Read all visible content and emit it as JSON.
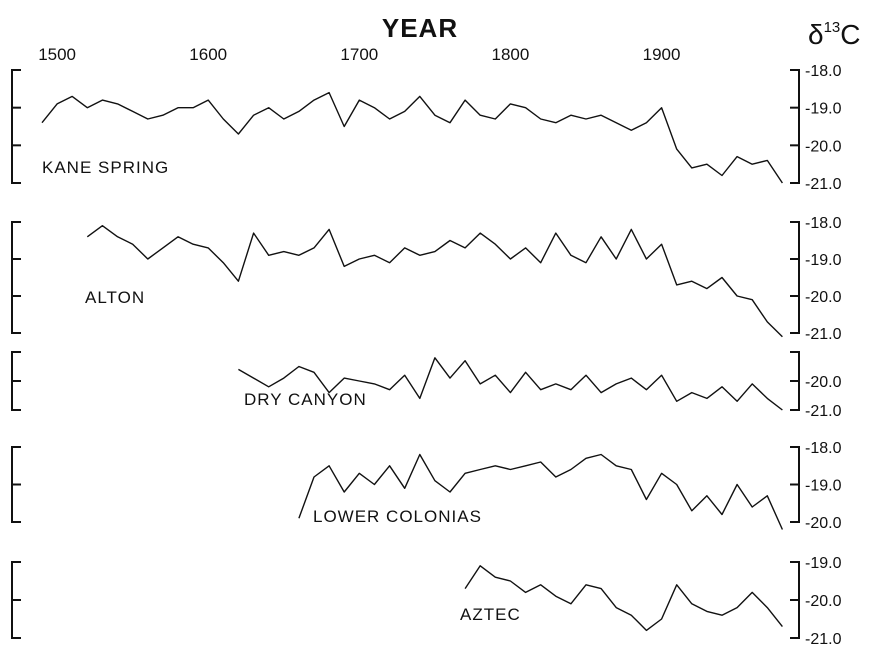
{
  "chart_data": {
    "type": "line",
    "title": "YEAR",
    "ylabel_symbol": "δ",
    "ylabel_superscript": "13",
    "ylabel_element": "C",
    "x_ticks": [
      "1500",
      "1600",
      "1700",
      "1800",
      "1900"
    ],
    "xlim": [
      1490,
      1985
    ],
    "panels": [
      {
        "name": "KANE SPRING",
        "ylim": [
          -18.0,
          -21.0
        ],
        "yticks": [
          "-18.0",
          "-19.0",
          "-20.0",
          "-21.0"
        ],
        "x": [
          1490,
          1500,
          1510,
          1520,
          1530,
          1540,
          1550,
          1560,
          1570,
          1580,
          1590,
          1600,
          1610,
          1620,
          1630,
          1640,
          1650,
          1660,
          1670,
          1680,
          1690,
          1700,
          1710,
          1720,
          1730,
          1740,
          1750,
          1760,
          1770,
          1780,
          1790,
          1800,
          1810,
          1820,
          1830,
          1840,
          1850,
          1860,
          1870,
          1880,
          1890,
          1900,
          1910,
          1920,
          1930,
          1940,
          1950,
          1960,
          1970,
          1980
        ],
        "y": [
          -19.4,
          -18.9,
          -18.7,
          -19.0,
          -18.8,
          -18.9,
          -19.1,
          -19.3,
          -19.2,
          -19.0,
          -19.0,
          -18.8,
          -19.3,
          -19.7,
          -19.2,
          -19.0,
          -19.3,
          -19.1,
          -18.8,
          -18.6,
          -19.5,
          -18.8,
          -19.0,
          -19.3,
          -19.1,
          -18.7,
          -19.2,
          -19.4,
          -18.8,
          -19.2,
          -19.3,
          -18.9,
          -19.0,
          -19.3,
          -19.4,
          -19.2,
          -19.3,
          -19.2,
          -19.4,
          -19.6,
          -19.4,
          -19.0,
          -20.1,
          -20.6,
          -20.5,
          -20.8,
          -20.3,
          -20.5,
          -20.4,
          -21.0
        ]
      },
      {
        "name": "ALTON",
        "ylim": [
          -18.0,
          -21.0
        ],
        "yticks": [
          "-18.0",
          "-19.0",
          "-20.0",
          "-21.0"
        ],
        "x": [
          1520,
          1530,
          1540,
          1550,
          1560,
          1570,
          1580,
          1590,
          1600,
          1610,
          1620,
          1630,
          1640,
          1650,
          1660,
          1670,
          1680,
          1690,
          1700,
          1710,
          1720,
          1730,
          1740,
          1750,
          1760,
          1770,
          1780,
          1790,
          1800,
          1810,
          1820,
          1830,
          1840,
          1850,
          1860,
          1870,
          1880,
          1890,
          1900,
          1910,
          1920,
          1930,
          1940,
          1950,
          1960,
          1970,
          1980
        ],
        "y": [
          -18.4,
          -18.1,
          -18.4,
          -18.6,
          -19.0,
          -18.7,
          -18.4,
          -18.6,
          -18.7,
          -19.1,
          -19.6,
          -18.3,
          -18.9,
          -18.8,
          -18.9,
          -18.7,
          -18.2,
          -19.2,
          -19.0,
          -18.9,
          -19.1,
          -18.7,
          -18.9,
          -18.8,
          -18.5,
          -18.7,
          -18.3,
          -18.6,
          -19.0,
          -18.7,
          -19.1,
          -18.3,
          -18.9,
          -19.1,
          -18.4,
          -19.0,
          -18.2,
          -19.0,
          -18.6,
          -19.7,
          -19.6,
          -19.8,
          -19.5,
          -20.0,
          -20.1,
          -20.7,
          -21.1
        ]
      },
      {
        "name": "DRY CANYON",
        "ylim": [
          -19.0,
          -21.0
        ],
        "yticks": [
          "-20.0",
          "-21.0"
        ],
        "x": [
          1620,
          1630,
          1640,
          1650,
          1660,
          1670,
          1680,
          1690,
          1700,
          1710,
          1720,
          1730,
          1740,
          1750,
          1760,
          1770,
          1780,
          1790,
          1800,
          1810,
          1820,
          1830,
          1840,
          1850,
          1860,
          1870,
          1880,
          1890,
          1900,
          1910,
          1920,
          1930,
          1940,
          1950,
          1960,
          1970,
          1980
        ],
        "y": [
          -19.6,
          -19.9,
          -20.2,
          -19.9,
          -19.5,
          -19.7,
          -20.4,
          -19.9,
          -20.0,
          -20.1,
          -20.3,
          -19.8,
          -20.6,
          -19.2,
          -19.9,
          -19.3,
          -20.1,
          -19.8,
          -20.4,
          -19.7,
          -20.3,
          -20.1,
          -20.3,
          -19.8,
          -20.4,
          -20.1,
          -19.9,
          -20.3,
          -19.8,
          -20.7,
          -20.4,
          -20.6,
          -20.2,
          -20.7,
          -20.1,
          -20.6,
          -21.0
        ]
      },
      {
        "name": "LOWER COLONIAS",
        "ylim": [
          -18.0,
          -20.0
        ],
        "yticks": [
          "-18.0",
          "-19.0",
          "-20.0"
        ],
        "x": [
          1660,
          1670,
          1680,
          1690,
          1700,
          1710,
          1720,
          1730,
          1740,
          1750,
          1760,
          1770,
          1780,
          1790,
          1800,
          1810,
          1820,
          1830,
          1840,
          1850,
          1860,
          1870,
          1880,
          1890,
          1900,
          1910,
          1920,
          1930,
          1940,
          1950,
          1960,
          1970,
          1980
        ],
        "y": [
          -19.9,
          -18.8,
          -18.5,
          -19.2,
          -18.7,
          -19.0,
          -18.5,
          -19.1,
          -18.2,
          -18.9,
          -19.2,
          -18.7,
          -18.6,
          -18.5,
          -18.6,
          -18.5,
          -18.4,
          -18.8,
          -18.6,
          -18.3,
          -18.2,
          -18.5,
          -18.6,
          -19.4,
          -18.7,
          -19.0,
          -19.7,
          -19.3,
          -19.8,
          -19.0,
          -19.6,
          -19.3,
          -20.2
        ]
      },
      {
        "name": "AZTEC",
        "ylim": [
          -19.0,
          -21.0
        ],
        "yticks": [
          "-19.0",
          "-20.0",
          "-21.0"
        ],
        "x": [
          1770,
          1780,
          1790,
          1800,
          1810,
          1820,
          1830,
          1840,
          1850,
          1860,
          1870,
          1880,
          1890,
          1900,
          1910,
          1920,
          1930,
          1940,
          1950,
          1960,
          1970,
          1980
        ],
        "y": [
          -19.7,
          -19.1,
          -19.4,
          -19.5,
          -19.8,
          -19.6,
          -19.9,
          -20.1,
          -19.6,
          -19.7,
          -20.2,
          -20.4,
          -20.8,
          -20.5,
          -19.6,
          -20.1,
          -20.3,
          -20.4,
          -20.2,
          -19.8,
          -20.2,
          -20.7
        ]
      }
    ]
  }
}
